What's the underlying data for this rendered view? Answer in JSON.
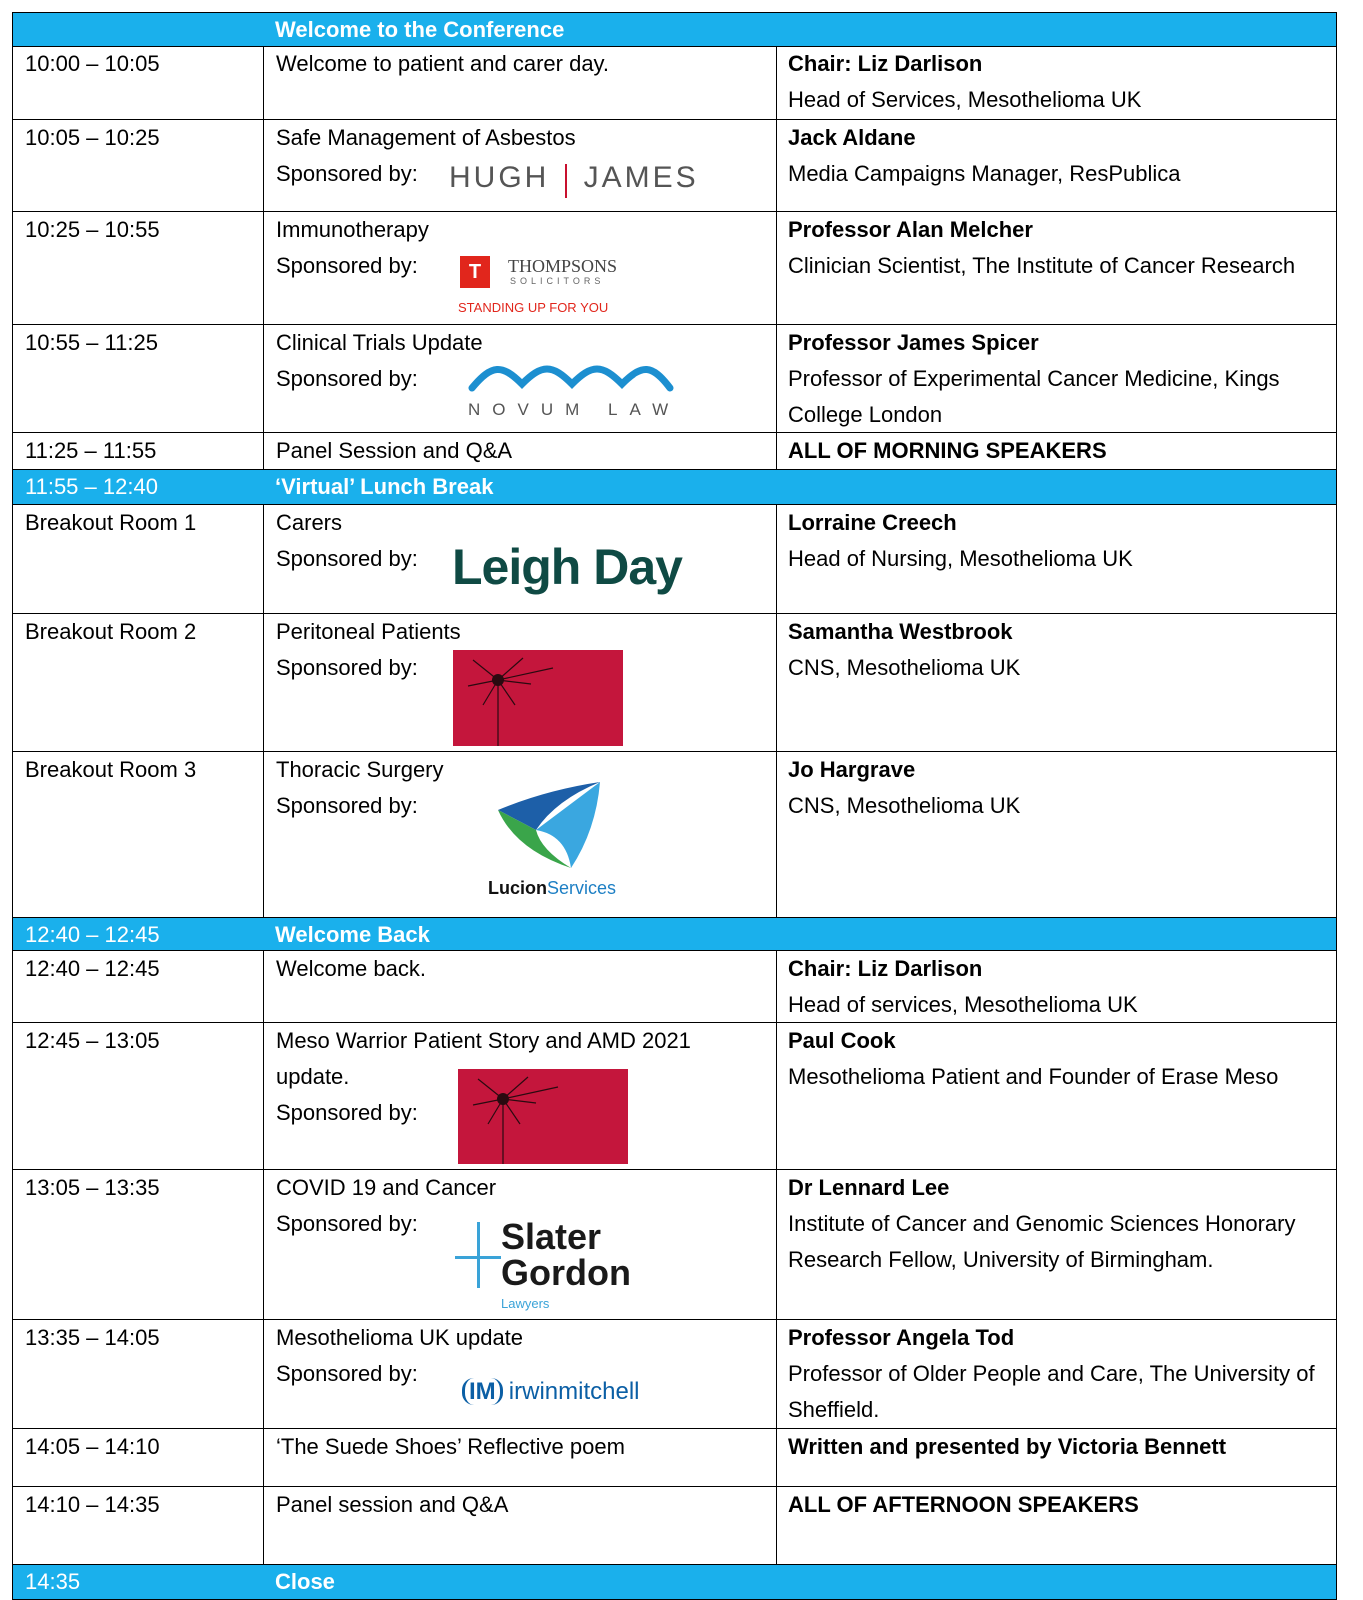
{
  "schedule": [
    {
      "title": "Welcome to the Conference"
    },
    {
      "time": "10:00 – 10:05",
      "session": "Welcome to patient and carer day.",
      "speaker": "Chair: Liz Darlison",
      "role": "Head of Services, Mesothelioma UK"
    },
    {
      "time": "10:05 – 10:25",
      "session": "Safe Management of Asbestos",
      "sponsor_label": "Sponsored by:",
      "logo": [
        "HUGH",
        "JAMES"
      ],
      "speaker": "Jack Aldane",
      "role": "Media Campaigns Manager, ResPublica"
    },
    {
      "time": "10:25 – 10:55",
      "session": "Immunotherapy",
      "sponsor_label": "Sponsored by:",
      "logo": [
        "THOMPSONS",
        "SOLICITORS",
        "STANDING UP FOR YOU"
      ],
      "speaker": "Professor Alan Melcher",
      "role": "Clinician Scientist, The Institute of Cancer Research"
    },
    {
      "time": "10:55 – 11:25",
      "session": "Clinical Trials Update",
      "sponsor_label": "Sponsored by:",
      "logo": [
        "NOVUM LAW"
      ],
      "speaker": "Professor James Spicer",
      "role": "Professor of Experimental Cancer Medicine, Kings College London"
    },
    {
      "time": "11:25 – 11:55",
      "session": "Panel Session and Q&A",
      "speaker": "ALL OF MORNING SPEAKERS"
    },
    {
      "time": "11:55 – 12:40",
      "title": "‘Virtual’ Lunch Break"
    },
    {
      "time": "Breakout Room 1",
      "session": "Carers",
      "sponsor_label": "Sponsored by:",
      "logo": [
        "Leigh Day"
      ],
      "speaker": "Lorraine Creech",
      "role": "Head of Nursing, Mesothelioma UK"
    },
    {
      "time": "Breakout Room 2",
      "session": "Peritoneal Patients",
      "sponsor_label": "Sponsored by:",
      "speaker": "Samantha Westbrook",
      "role": "CNS, Mesothelioma UK"
    },
    {
      "time": "Breakout Room 3",
      "session": "Thoracic Surgery",
      "sponsor_label": "Sponsored by:",
      "logo": [
        "Lucion",
        "Services"
      ],
      "speaker": "Jo Hargrave",
      "role": "CNS, Mesothelioma UK"
    },
    {
      "time": "12:40 – 12:45",
      "title": "Welcome Back"
    },
    {
      "time": "12:40 – 12:45",
      "session": "Welcome back.",
      "speaker": "Chair: Liz Darlison",
      "role": "Head of services, Mesothelioma UK"
    },
    {
      "time": "12:45 – 13:05",
      "session": "Meso Warrior Patient Story and AMD 2021 update.",
      "sponsor_label": "Sponsored by:",
      "speaker": "Paul Cook",
      "role": "Mesothelioma Patient and Founder of Erase Meso"
    },
    {
      "time": "13:05 – 13:35",
      "session": "COVID 19 and Cancer",
      "sponsor_label": "Sponsored by:",
      "logo": [
        "Slater",
        "Gordon",
        "Lawyers"
      ],
      "speaker": "Dr Lennard Lee",
      "role": "Institute of Cancer and Genomic Sciences Honorary Research Fellow, University of Birmingham."
    },
    {
      "time": "13:35 – 14:05",
      "session": "Mesothelioma UK update",
      "sponsor_label": "Sponsored by:",
      "logo": [
        "IM",
        "irwinmitchell"
      ],
      "speaker": "Professor Angela Tod",
      "role": "Professor of Older People and Care, The University of Sheffield."
    },
    {
      "time": "14:05 – 14:10",
      "session": "‘The Suede Shoes’ Reflective poem",
      "speaker": "Written and presented by Victoria Bennett"
    },
    {
      "time": "14:10 – 14:35",
      "session": "Panel session and Q&A",
      "speaker": "ALL OF AFTERNOON SPEAKERS"
    },
    {
      "time": "14:35",
      "title": "Close"
    }
  ]
}
